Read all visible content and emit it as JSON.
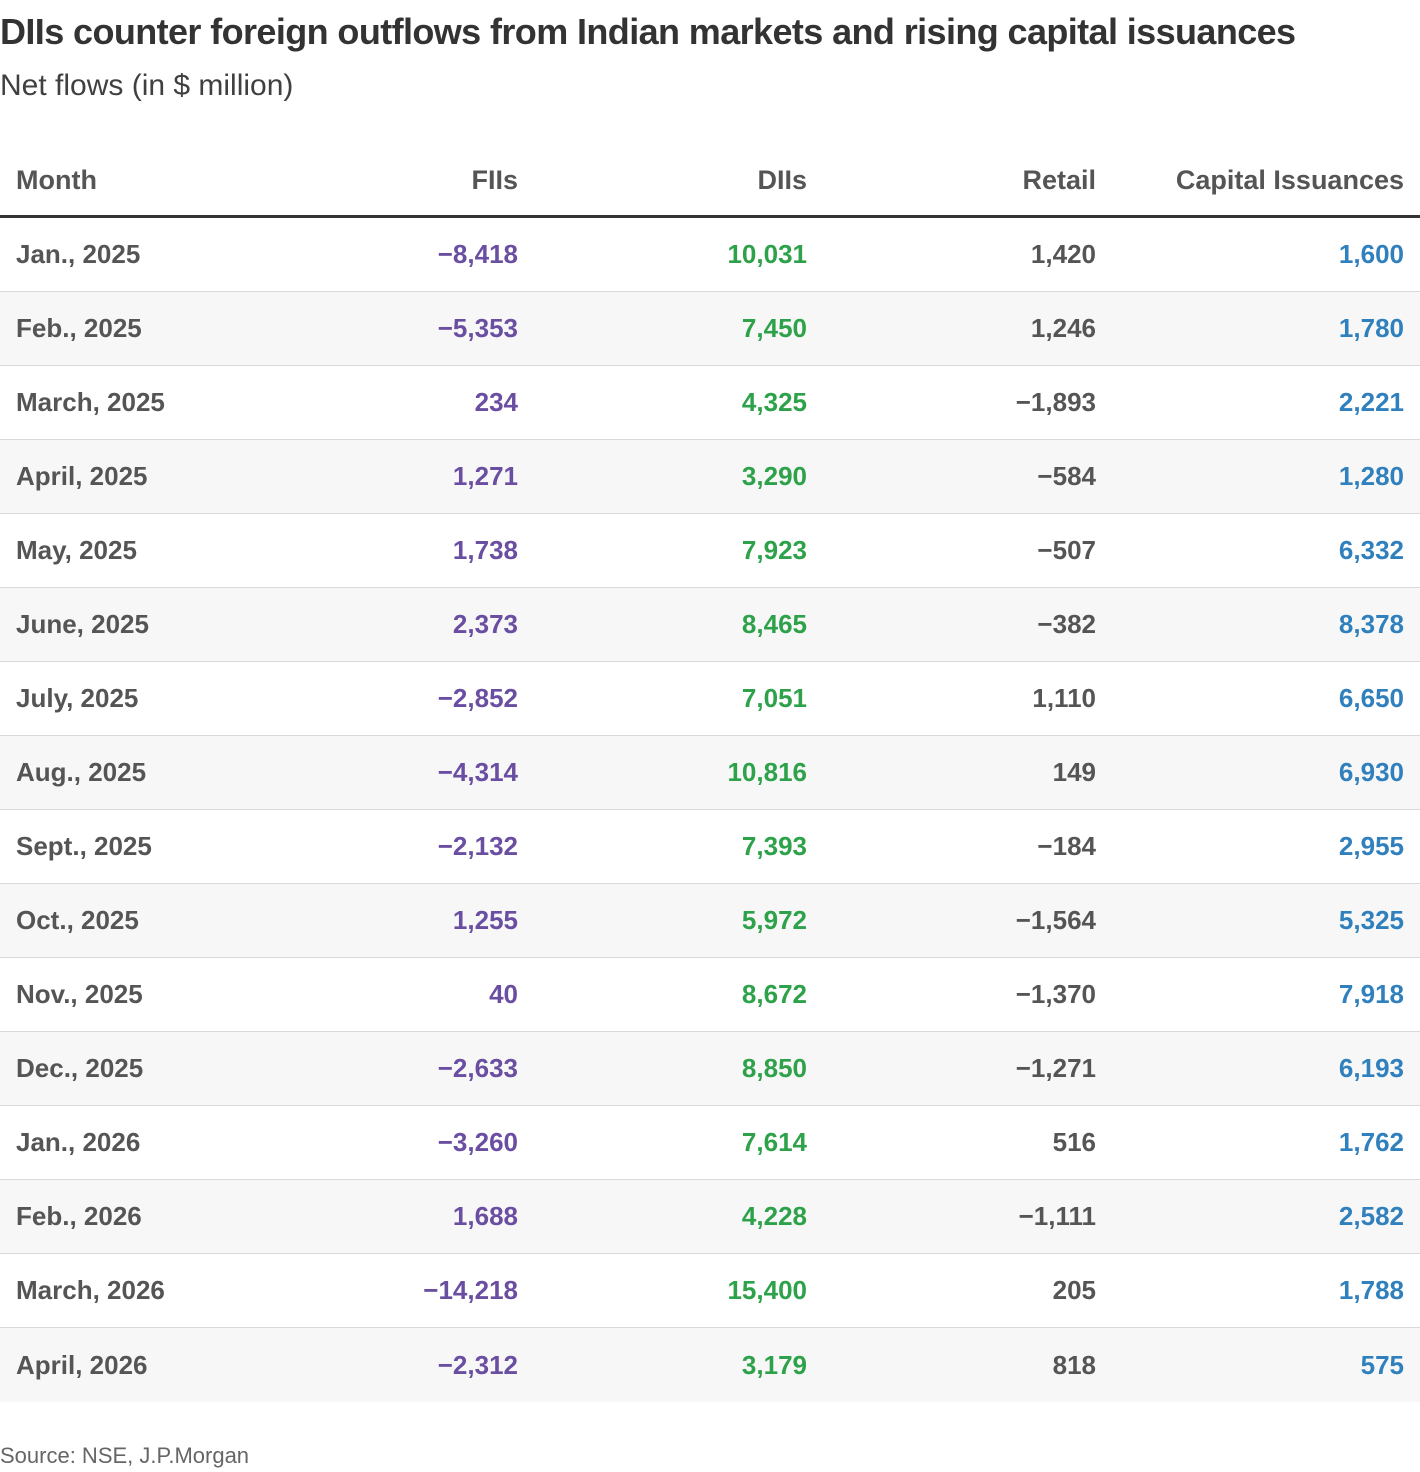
{
  "chart_data": {
    "type": "table",
    "title": "DIIs counter foreign outflows from Indian markets and rising capital issuances",
    "subtitle": "Net flows (in $ million)",
    "columns": [
      "Month",
      "FIIs",
      "DIIs",
      "Retail",
      "Capital Issuances"
    ],
    "colors": {
      "FIIs": "#6a4ea1",
      "DIIs": "#2ea24a",
      "Retail": "#555555",
      "Capital Issuances": "#2f80bd"
    },
    "rows": [
      {
        "month": "Jan., 2025",
        "fiis": "−8,418",
        "diis": "10,031",
        "retail": "1,420",
        "capital": "1,600"
      },
      {
        "month": "Feb., 2025",
        "fiis": "−5,353",
        "diis": "7,450",
        "retail": "1,246",
        "capital": "1,780"
      },
      {
        "month": "March, 2025",
        "fiis": "234",
        "diis": "4,325",
        "retail": "−1,893",
        "capital": "2,221"
      },
      {
        "month": "April, 2025",
        "fiis": "1,271",
        "diis": "3,290",
        "retail": "−584",
        "capital": "1,280"
      },
      {
        "month": "May, 2025",
        "fiis": "1,738",
        "diis": "7,923",
        "retail": "−507",
        "capital": "6,332"
      },
      {
        "month": "June, 2025",
        "fiis": "2,373",
        "diis": "8,465",
        "retail": "−382",
        "capital": "8,378"
      },
      {
        "month": "July, 2025",
        "fiis": "−2,852",
        "diis": "7,051",
        "retail": "1,110",
        "capital": "6,650"
      },
      {
        "month": "Aug., 2025",
        "fiis": "−4,314",
        "diis": "10,816",
        "retail": "149",
        "capital": "6,930"
      },
      {
        "month": "Sept., 2025",
        "fiis": "−2,132",
        "diis": "7,393",
        "retail": "−184",
        "capital": "2,955"
      },
      {
        "month": "Oct., 2025",
        "fiis": "1,255",
        "diis": "5,972",
        "retail": "−1,564",
        "capital": "5,325"
      },
      {
        "month": "Nov., 2025",
        "fiis": "40",
        "diis": "8,672",
        "retail": "−1,370",
        "capital": "7,918"
      },
      {
        "month": "Dec., 2025",
        "fiis": "−2,633",
        "diis": "8,850",
        "retail": "−1,271",
        "capital": "6,193"
      },
      {
        "month": "Jan., 2026",
        "fiis": "−3,260",
        "diis": "7,614",
        "retail": "516",
        "capital": "1,762"
      },
      {
        "month": "Feb., 2026",
        "fiis": "1,688",
        "diis": "4,228",
        "retail": "−1,111",
        "capital": "2,582"
      },
      {
        "month": "March, 2026",
        "fiis": "−14,218",
        "diis": "15,400",
        "retail": "205",
        "capital": "1,788"
      },
      {
        "month": "April, 2026",
        "fiis": "−2,312",
        "diis": "3,179",
        "retail": "818",
        "capital": "575"
      }
    ],
    "source": "Source: NSE, J.P.Morgan"
  }
}
